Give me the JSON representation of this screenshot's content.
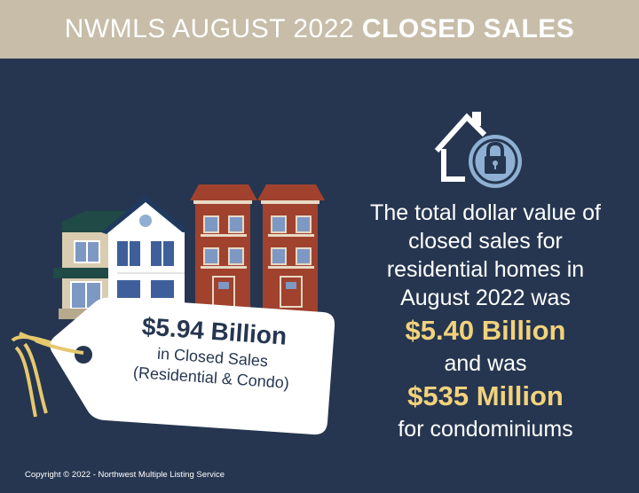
{
  "banner": {
    "title_light": "NWMLS AUGUST 2022",
    "title_bold": "CLOSED SALES"
  },
  "tag": {
    "amount": "$5.94 Billion",
    "line1": "in Closed Sales",
    "line2": "(Residential & Condo)"
  },
  "main": {
    "line1": "The total dollar value of",
    "line2": "closed sales for",
    "line3": "residential homes in",
    "line4": "August 2022 was",
    "residential_amount": "$5.40 Billion",
    "line5": "and was",
    "condo_amount": "$535 Million",
    "line6": "for condominiums"
  },
  "footer": {
    "copyright": "Copyright © 2022 - Northwest Multiple Listing Service"
  },
  "icons": [
    "house-lock-icon",
    "houses-illustration",
    "price-tag-icon"
  ],
  "colors": {
    "background": "#263650",
    "banner": "#c7bda9",
    "accent": "#f2d27c",
    "brick": "#a0422e",
    "tag": "#ffffff"
  }
}
